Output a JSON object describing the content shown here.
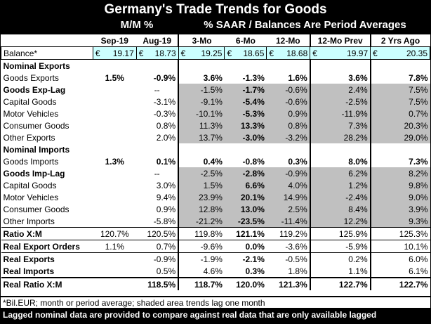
{
  "header": {
    "title": "Germany's Trade Trends for Goods",
    "sub_left": "M/M %",
    "sub_right": "% SAAR / Balances Are Period Averages"
  },
  "columns": [
    "Sep-19",
    "Aug-19",
    "3-Mo",
    "6-Mo",
    "12-Mo",
    "12-Mo Prev",
    "2 Yrs Ago"
  ],
  "balance": {
    "label": "Balance*",
    "currency": "€",
    "values": [
      "19.17",
      "18.73",
      "19.25",
      "18.65",
      "18.68",
      "19.97",
      "20.35"
    ]
  },
  "rows": [
    {
      "label": "Nominal Exports",
      "bold": true,
      "values": [
        "",
        "",
        "",
        "",
        "",
        "",
        ""
      ]
    },
    {
      "label": "Goods Exports",
      "values": [
        "1.5%",
        "-0.9%",
        "3.6%",
        "-1.3%",
        "1.6%",
        "3.6%",
        "7.8%"
      ]
    },
    {
      "label": "Goods Exp-Lag",
      "bold": true,
      "values": [
        "",
        "--",
        "-1.5%",
        "-1.7%",
        "-0.6%",
        "2.4%",
        "7.5%"
      ]
    },
    {
      "label": "Capital Goods",
      "values": [
        "",
        "-3.1%",
        "-9.1%",
        "-5.4%",
        "-0.6%",
        "-2.5%",
        "7.5%"
      ]
    },
    {
      "label": "Motor Vehicles",
      "values": [
        "",
        "-0.3%",
        "-10.1%",
        "-5.3%",
        "0.9%",
        "-11.9%",
        "0.7%"
      ]
    },
    {
      "label": "Consumer Goods",
      "values": [
        "",
        "0.8%",
        "11.3%",
        "13.3%",
        "0.8%",
        "7.3%",
        "20.3%"
      ]
    },
    {
      "label": "Other Exports",
      "values": [
        "",
        "2.0%",
        "13.7%",
        "-3.0%",
        "-3.2%",
        "28.2%",
        "29.0%"
      ]
    },
    {
      "label": "Nominal Imports",
      "bold": true,
      "values": [
        "",
        "",
        "",
        "",
        "",
        "",
        ""
      ]
    },
    {
      "label": "Goods Imports",
      "values": [
        "1.3%",
        "0.1%",
        "0.4%",
        "-0.8%",
        "0.3%",
        "8.0%",
        "7.3%"
      ]
    },
    {
      "label": "Goods Imp-Lag",
      "bold": true,
      "values": [
        "",
        "--",
        "-2.5%",
        "-2.8%",
        "-0.9%",
        "6.2%",
        "8.2%"
      ]
    },
    {
      "label": "Capital Goods",
      "values": [
        "",
        "3.0%",
        "1.5%",
        "6.6%",
        "4.0%",
        "1.2%",
        "9.8%"
      ]
    },
    {
      "label": "Motor Vehicles",
      "values": [
        "",
        "9.4%",
        "23.9%",
        "20.1%",
        "14.9%",
        "-2.4%",
        "9.0%"
      ]
    },
    {
      "label": "Consumer Goods",
      "values": [
        "",
        "0.9%",
        "12.8%",
        "13.0%",
        "2.5%",
        "8.4%",
        "3.9%"
      ]
    },
    {
      "label": "Other Imports",
      "values": [
        "",
        "-5.8%",
        "-21.2%",
        "-23.5%",
        "-11.4%",
        "12.2%",
        "9.3%"
      ]
    },
    {
      "label": "Ratio X:M",
      "bold": true,
      "values": [
        "120.7%",
        "120.5%",
        "119.8%",
        "121.1%",
        "119.2%",
        "125.9%",
        "125.3%"
      ]
    },
    {
      "label": "Real Export Orders",
      "bold": true,
      "values": [
        "1.1%",
        "0.7%",
        "-9.6%",
        "0.0%",
        "-3.6%",
        "-5.9%",
        "10.1%"
      ]
    },
    {
      "label": "Real Exports",
      "bold": true,
      "values": [
        "",
        "-0.9%",
        "-1.9%",
        "-2.1%",
        "-0.5%",
        "0.2%",
        "6.0%"
      ]
    },
    {
      "label": "Real Imports",
      "bold": true,
      "values": [
        "",
        "0.5%",
        "4.6%",
        "0.3%",
        "1.8%",
        "1.1%",
        "6.1%"
      ]
    },
    {
      "label": "Real Ratio X:M",
      "bold": true,
      "values": [
        "",
        "118.5%",
        "118.7%",
        "120.0%",
        "121.3%",
        "122.7%",
        "122.7%"
      ]
    }
  ],
  "footnote": "*Bil.EUR; month or period average; shaded area trends lag one month",
  "banner": "Lagged nominal data are provided to compare against real data that are only available lagged"
}
